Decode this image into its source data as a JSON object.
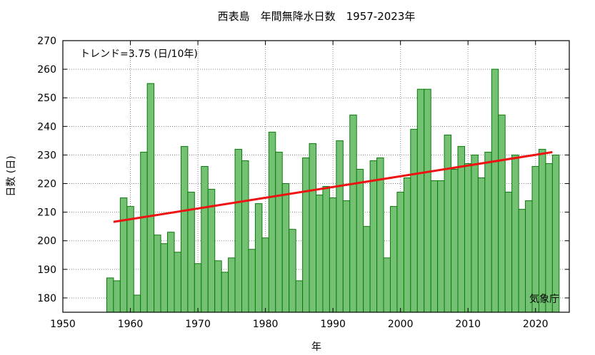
{
  "chart_data": {
    "type": "bar",
    "title": "西表島　年間無降水日数　1957-2023年",
    "xlabel": "年",
    "ylabel": "日数 (日)",
    "xlim": [
      1950,
      2025
    ],
    "ylim": [
      175,
      270
    ],
    "xticks": [
      1950,
      1960,
      1970,
      1980,
      1990,
      2000,
      2010,
      2020
    ],
    "yticks": [
      180,
      190,
      200,
      210,
      220,
      230,
      240,
      250,
      260,
      270
    ],
    "grid": true,
    "bar_color": "#74c174",
    "bar_edge_color": "#0a7a0a",
    "trend_color": "#ee1111",
    "trend_label": "トレンド=3.75 (日/10年)",
    "source_label": "気象庁",
    "trend_line": {
      "x": [
        1957.5,
        2022.5
      ],
      "y": [
        206.6,
        231.0
      ]
    },
    "x": [
      1957,
      1958,
      1959,
      1960,
      1961,
      1962,
      1963,
      1964,
      1965,
      1966,
      1967,
      1968,
      1969,
      1970,
      1971,
      1972,
      1973,
      1974,
      1975,
      1976,
      1977,
      1978,
      1979,
      1980,
      1981,
      1982,
      1983,
      1984,
      1985,
      1986,
      1987,
      1988,
      1989,
      1990,
      1991,
      1992,
      1993,
      1994,
      1995,
      1996,
      1997,
      1998,
      1999,
      2000,
      2001,
      2002,
      2003,
      2004,
      2005,
      2006,
      2007,
      2008,
      2009,
      2010,
      2011,
      2012,
      2013,
      2014,
      2015,
      2016,
      2017,
      2018,
      2019,
      2020,
      2021,
      2022,
      2023
    ],
    "values": [
      187,
      186,
      215,
      212,
      181,
      231,
      255,
      202,
      199,
      203,
      196,
      233,
      217,
      192,
      226,
      218,
      193,
      189,
      194,
      232,
      228,
      197,
      213,
      201,
      238,
      231,
      220,
      204,
      186,
      229,
      234,
      216,
      219,
      215,
      235,
      214,
      244,
      225,
      205,
      228,
      229,
      194,
      212,
      217,
      222,
      239,
      253,
      253,
      221,
      221,
      237,
      225,
      233,
      227,
      230,
      222,
      231,
      260,
      244,
      217,
      230,
      211,
      214,
      226,
      232,
      227,
      230
    ]
  }
}
